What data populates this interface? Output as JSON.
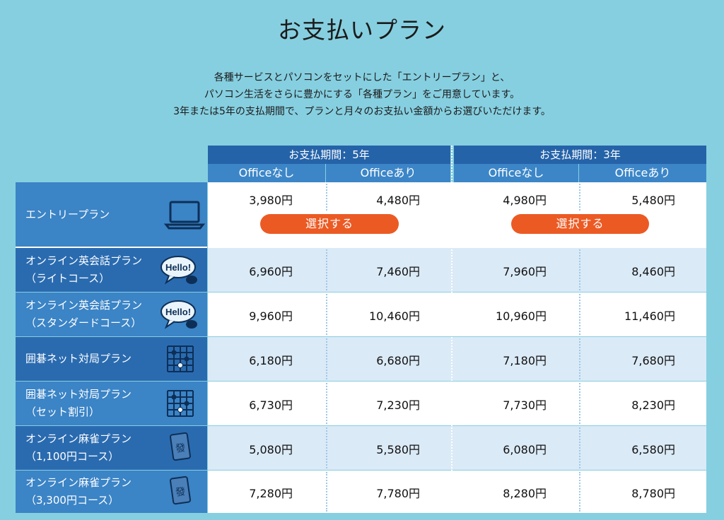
{
  "page": {
    "title": "お支払いプラン",
    "intro": [
      "各種サービスとパソコンをセットにした「エントリープラン」と、",
      "パソコン生活をさらに豊かにする「各種プラン」をご用意しています。",
      "3年または5年の支払期間で、プランと月々のお支払い金額からお選びいただけます。"
    ]
  },
  "periods": [
    {
      "label": "お支払期間：5年",
      "columns": [
        "Officeなし",
        "Officeあり"
      ]
    },
    {
      "label": "お支払期間：3年",
      "columns": [
        "Officeなし",
        "Officeあり"
      ]
    }
  ],
  "select_button_label": "選択する",
  "plans": [
    {
      "label": "エントリープラン",
      "icon": "laptop-icon",
      "prices": [
        "3,980円",
        "4,480円",
        "4,980円",
        "5,480円"
      ]
    },
    {
      "label": "オンライン英会話プラン\n（ライトコース）",
      "icon": "hello-speech-bubble-icon",
      "prices": [
        "6,960円",
        "7,460円",
        "7,960円",
        "8,460円"
      ]
    },
    {
      "label": "オンライン英会話プラン\n（スタンダードコース）",
      "icon": "hello-speech-bubble-icon",
      "prices": [
        "9,960円",
        "10,460円",
        "10,960円",
        "11,460円"
      ]
    },
    {
      "label": "囲碁ネット対局プラン",
      "icon": "go-board-icon",
      "prices": [
        "6,180円",
        "6,680円",
        "7,180円",
        "7,680円"
      ]
    },
    {
      "label": "囲碁ネット対局プラン\n（セット割引）",
      "icon": "go-board-icon",
      "prices": [
        "6,730円",
        "7,230円",
        "7,730円",
        "8,230円"
      ]
    },
    {
      "label": "オンライン麻雀プラン\n（1,100円コース）",
      "icon": "mahjong-tile-icon",
      "prices": [
        "5,080円",
        "5,580円",
        "6,080円",
        "6,580円"
      ]
    },
    {
      "label": "オンライン麻雀プラン\n（3,300円コース）",
      "icon": "mahjong-tile-icon",
      "prices": [
        "7,280円",
        "7,780円",
        "8,280円",
        "8,780円"
      ]
    }
  ]
}
